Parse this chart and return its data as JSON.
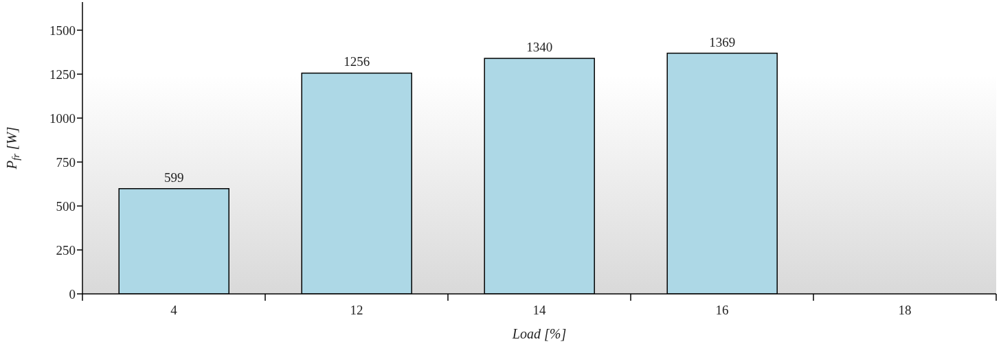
{
  "chart_data": {
    "type": "bar",
    "xlabel": "Load [%]",
    "ylabel": "P$_{fr}$ [W]",
    "categories": [
      "4",
      "12",
      "14",
      "16",
      "18"
    ],
    "values": [
      599,
      1256,
      1340,
      1369,
      null
    ],
    "color": "#add8e6",
    "ylim": [
      0,
      1660
    ],
    "yticks": [
      0,
      250,
      500,
      750,
      1000,
      1250,
      1500
    ],
    "data_labels": true,
    "legend": false,
    "grid": false
  }
}
